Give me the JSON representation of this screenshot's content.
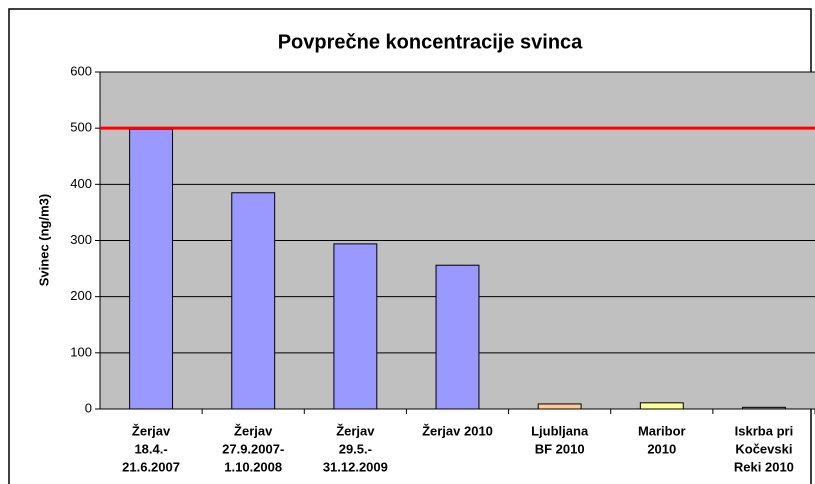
{
  "chart_data": {
    "type": "bar",
    "title": "Povprečne koncentracije svinca",
    "y_label": "Svinec (ng/m3)",
    "categories": [
      [
        "Žerjav",
        "18.4.-",
        "21.6.2007"
      ],
      [
        "Žerjav",
        "27.9.2007-",
        "1.10.2008"
      ],
      [
        "Žerjav",
        "29.5.-",
        "31.12.2009"
      ],
      [
        "Žerjav 2010"
      ],
      [
        "Ljubljana",
        "BF 2010"
      ],
      [
        "Maribor",
        "2010"
      ],
      [
        "Iskrba pri",
        "Kočevski",
        "Reki 2010"
      ]
    ],
    "values": [
      498,
      385,
      294,
      256,
      9,
      11,
      3
    ],
    "colors": [
      "#9999ff",
      "#9999ff",
      "#9999ff",
      "#9999ff",
      "#ffcc99",
      "#ffff99",
      "#969696"
    ],
    "reference_line": {
      "value": 500,
      "color": "#ff0000"
    },
    "ylim": [
      0,
      600
    ],
    "yticks": [
      0,
      100,
      200,
      300,
      400,
      500,
      600
    ],
    "grid": true
  }
}
